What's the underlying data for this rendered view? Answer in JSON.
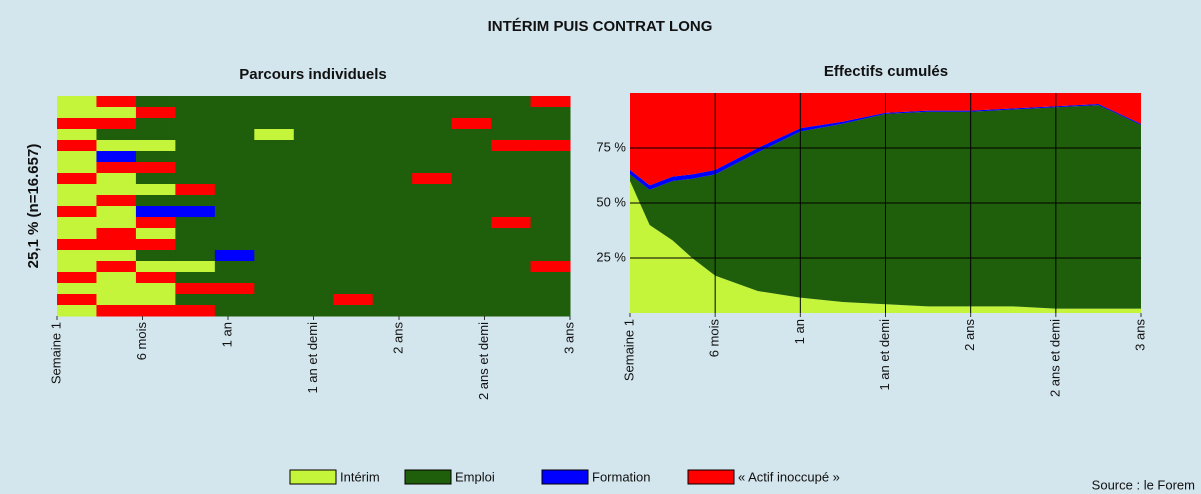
{
  "title": "INTÉRIM PUIS CONTRAT LONG",
  "source": "Source : le Forem",
  "chart_data": [
    {
      "type": "sequence",
      "title": "Parcours individuels",
      "ylabel": "25,1 % (n=16.657)",
      "xlim": [
        0,
        156
      ],
      "xticks": [
        {
          "value": 0,
          "label": "Semaine 1"
        },
        {
          "value": 26,
          "label": "6 mois"
        },
        {
          "value": 52,
          "label": "1 an"
        },
        {
          "value": 78,
          "label": "1 an et demi"
        },
        {
          "value": 104,
          "label": "2 ans"
        },
        {
          "value": 130,
          "label": "2 ans et demi"
        },
        {
          "value": 156,
          "label": "3 ans"
        }
      ],
      "rows": [
        [
          0,
          3,
          1,
          1,
          1,
          1,
          1,
          1,
          1,
          1,
          1,
          1,
          3
        ],
        [
          0,
          0,
          3,
          1,
          1,
          1,
          1,
          1,
          1,
          1,
          1,
          1,
          1
        ],
        [
          3,
          3,
          1,
          1,
          1,
          1,
          1,
          1,
          1,
          1,
          3,
          1,
          1
        ],
        [
          0,
          1,
          1,
          1,
          1,
          0,
          1,
          1,
          1,
          1,
          1,
          1,
          1
        ],
        [
          3,
          0,
          0,
          1,
          1,
          1,
          1,
          1,
          1,
          1,
          1,
          3,
          3
        ],
        [
          0,
          2,
          1,
          1,
          1,
          1,
          1,
          1,
          1,
          1,
          1,
          1,
          1
        ],
        [
          0,
          3,
          3,
          1,
          1,
          1,
          1,
          1,
          1,
          1,
          1,
          1,
          1
        ],
        [
          3,
          0,
          1,
          1,
          1,
          1,
          1,
          1,
          1,
          3,
          1,
          1,
          1
        ],
        [
          0,
          0,
          0,
          3,
          1,
          1,
          1,
          1,
          1,
          1,
          1,
          1,
          1
        ],
        [
          0,
          3,
          1,
          1,
          1,
          1,
          1,
          1,
          1,
          1,
          1,
          1,
          1
        ],
        [
          3,
          0,
          2,
          2,
          1,
          1,
          1,
          1,
          1,
          1,
          1,
          1,
          1
        ],
        [
          0,
          0,
          3,
          1,
          1,
          1,
          1,
          1,
          1,
          1,
          1,
          3,
          1
        ],
        [
          0,
          3,
          0,
          1,
          1,
          1,
          1,
          1,
          1,
          1,
          1,
          1,
          1
        ],
        [
          3,
          3,
          3,
          1,
          1,
          1,
          1,
          1,
          1,
          1,
          1,
          1,
          1
        ],
        [
          0,
          0,
          1,
          1,
          2,
          1,
          1,
          1,
          1,
          1,
          1,
          1,
          1
        ],
        [
          0,
          3,
          0,
          0,
          1,
          1,
          1,
          1,
          1,
          1,
          1,
          1,
          3
        ],
        [
          3,
          0,
          3,
          1,
          1,
          1,
          1,
          1,
          1,
          1,
          1,
          1,
          1
        ],
        [
          0,
          0,
          0,
          3,
          3,
          1,
          1,
          1,
          1,
          1,
          1,
          1,
          1
        ],
        [
          3,
          0,
          0,
          1,
          1,
          1,
          1,
          3,
          1,
          1,
          1,
          1,
          1
        ],
        [
          0,
          3,
          3,
          3,
          1,
          1,
          1,
          1,
          1,
          1,
          1,
          1,
          1
        ]
      ]
    },
    {
      "type": "area",
      "title": "Effectifs cumulés",
      "stacked": true,
      "grid": true,
      "x": [
        0,
        6,
        13,
        19,
        26,
        39,
        52,
        65,
        78,
        91,
        104,
        117,
        130,
        143,
        156
      ],
      "xlim": [
        0,
        156
      ],
      "xticks": [
        {
          "value": 0,
          "label": "Semaine 1"
        },
        {
          "value": 26,
          "label": "6 mois"
        },
        {
          "value": 52,
          "label": "1 an"
        },
        {
          "value": 78,
          "label": "1 an et demi"
        },
        {
          "value": 104,
          "label": "2 ans"
        },
        {
          "value": 130,
          "label": "2 ans et demi"
        },
        {
          "value": 156,
          "label": "3 ans"
        }
      ],
      "ylim": [
        0,
        100
      ],
      "yticks": [
        {
          "value": 25,
          "label": "25 %"
        },
        {
          "value": 50,
          "label": "50 %"
        },
        {
          "value": 75,
          "label": "75 %"
        }
      ],
      "series": [
        {
          "name": "Intérim",
          "color": "#c4f53a",
          "values": [
            60,
            40,
            33,
            25,
            17,
            10,
            7,
            5,
            4,
            3,
            3,
            3,
            2,
            2,
            2
          ]
        },
        {
          "name": "Emploi",
          "color": "#1f5e0a",
          "values": [
            3,
            16,
            27,
            36,
            46,
            63,
            75.5,
            81,
            86.5,
            88.5,
            88.5,
            89.5,
            91.5,
            92.5,
            83.5
          ]
        },
        {
          "name": "Formation",
          "color": "#0000ff",
          "values": [
            2,
            2,
            2,
            2,
            2,
            2,
            1.5,
            1,
            0.5,
            0.5,
            0.5,
            0.5,
            0.5,
            0.5,
            0.5
          ]
        },
        {
          "name": "« Actif inoccupé »",
          "color": "#ff0000",
          "values": [
            35,
            42,
            38,
            37,
            35,
            25,
            16,
            13,
            9,
            8,
            8,
            7,
            6,
            5,
            14
          ]
        }
      ]
    }
  ]
}
